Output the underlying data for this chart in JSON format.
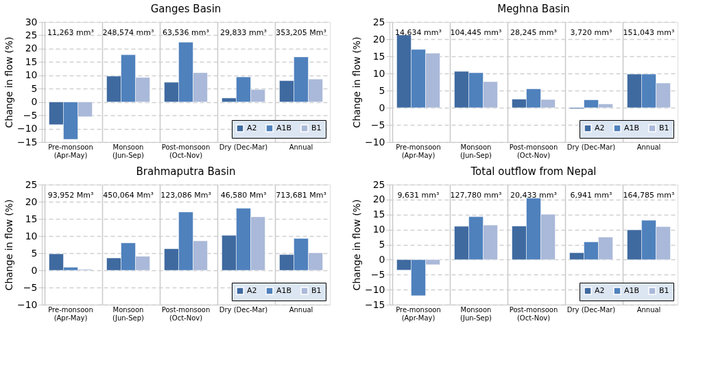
{
  "chart_data": [
    {
      "type": "bar",
      "title": "Ganges Basin",
      "ylabel": "Change in flow (%)",
      "categories": [
        "Pre-monsoon (Apr-May)",
        "Monsoon (Jun-Sep)",
        "Post-monsoon (Oct-Nov)",
        "Dry (Dec-Mar)",
        "Annual"
      ],
      "series": [
        {
          "name": "A2",
          "color": "#3f6aa0",
          "values": [
            -8.5,
            9.7,
            7.4,
            1.5,
            8.0
          ]
        },
        {
          "name": "A1B",
          "color": "#4f81bd",
          "values": [
            -14.0,
            17.7,
            22.4,
            9.4,
            16.9
          ]
        },
        {
          "name": "B1",
          "color": "#aab9d9",
          "values": [
            -5.5,
            9.2,
            11.0,
            4.7,
            8.6
          ]
        }
      ],
      "ylim": [
        -15,
        30
      ],
      "yticks": [
        -15,
        -10,
        -5,
        0,
        5,
        10,
        15,
        20,
        25,
        30
      ],
      "grid": true,
      "legend": "bottom right",
      "annotations": [
        "11,263 mm³",
        "248,574 mm³",
        "63,536 mm³",
        "29,833 mm³",
        "353,205 Mm³"
      ]
    },
    {
      "type": "bar",
      "title": "Meghna Basin",
      "ylabel": "Change in flow (%)",
      "categories": [
        "Pre-monsoon (Apr-May)",
        "Monsoon (Jun-Sep)",
        "Post-monsoon (Oct-Nov)",
        "Dry (Dec-Mar)",
        "Annual"
      ],
      "series": [
        {
          "name": "A2",
          "color": "#3f6aa0",
          "values": [
            21.2,
            10.6,
            2.5,
            -0.3,
            9.8
          ]
        },
        {
          "name": "A1B",
          "color": "#4f81bd",
          "values": [
            17.0,
            10.2,
            5.5,
            2.3,
            9.8
          ]
        },
        {
          "name": "B1",
          "color": "#aab9d9",
          "values": [
            15.9,
            7.6,
            2.4,
            1.1,
            7.2
          ]
        }
      ],
      "ylim": [
        -10,
        25
      ],
      "yticks": [
        -10,
        -5,
        0,
        5,
        10,
        15,
        20,
        25
      ],
      "grid": true,
      "legend": "bottom right",
      "annotations": [
        "14,634 mm³",
        "104,445 mm³",
        "28,245 mm³",
        "3,720 mm³",
        "151,043 mm³"
      ]
    },
    {
      "type": "bar",
      "title": "Brahmaputra Basin",
      "ylabel": "Change in flow (%)",
      "categories": [
        "Pre-monsoon (Apr-May)",
        "Monsoon (Jun-Sep)",
        "Post-monsoon (Oct-Nov)",
        "Dry (Dec-Mar)",
        "Annual"
      ],
      "series": [
        {
          "name": "A2",
          "color": "#3f6aa0",
          "values": [
            4.8,
            3.6,
            6.3,
            10.2,
            4.6
          ]
        },
        {
          "name": "A1B",
          "color": "#4f81bd",
          "values": [
            0.9,
            8.0,
            17.0,
            18.1,
            9.3
          ]
        },
        {
          "name": "B1",
          "color": "#aab9d9",
          "values": [
            0.3,
            4.1,
            8.6,
            15.6,
            5.1
          ]
        }
      ],
      "ylim": [
        -10,
        25
      ],
      "yticks": [
        -10,
        -5,
        0,
        5,
        10,
        15,
        20,
        25
      ],
      "grid": true,
      "legend": "bottom right",
      "annotations": [
        "93,952 Mm³",
        "450,064 Mm³",
        "123,086 Mm³",
        "46,580 Mm³",
        "713,681 Mm³"
      ]
    },
    {
      "type": "bar",
      "title": "Total outflow from Nepal",
      "ylabel": "Change in flow (%)",
      "categories": [
        "Pre-monsoon (Apr-May)",
        "Monsoon (Jun-Sep)",
        "Post-monsoon (Oct-Nov)",
        "Dry (Dec-Mar)",
        "Annual"
      ],
      "series": [
        {
          "name": "A2",
          "color": "#3f6aa0",
          "values": [
            -3.5,
            11.1,
            11.2,
            2.3,
            9.9
          ]
        },
        {
          "name": "A1B",
          "color": "#4f81bd",
          "values": [
            -12.0,
            14.3,
            20.5,
            5.9,
            13.1
          ]
        },
        {
          "name": "B1",
          "color": "#aab9d9",
          "values": [
            -1.7,
            11.5,
            15.1,
            7.5,
            11.0
          ]
        }
      ],
      "ylim": [
        -15,
        25
      ],
      "yticks": [
        -15,
        -10,
        -5,
        0,
        5,
        10,
        15,
        20,
        25
      ],
      "grid": true,
      "legend": "bottom right",
      "annotations": [
        "9,631 mm³",
        "127,780 mm³",
        "20,433 mm³",
        "6,941 mm³",
        "164,785 mm³"
      ]
    }
  ]
}
